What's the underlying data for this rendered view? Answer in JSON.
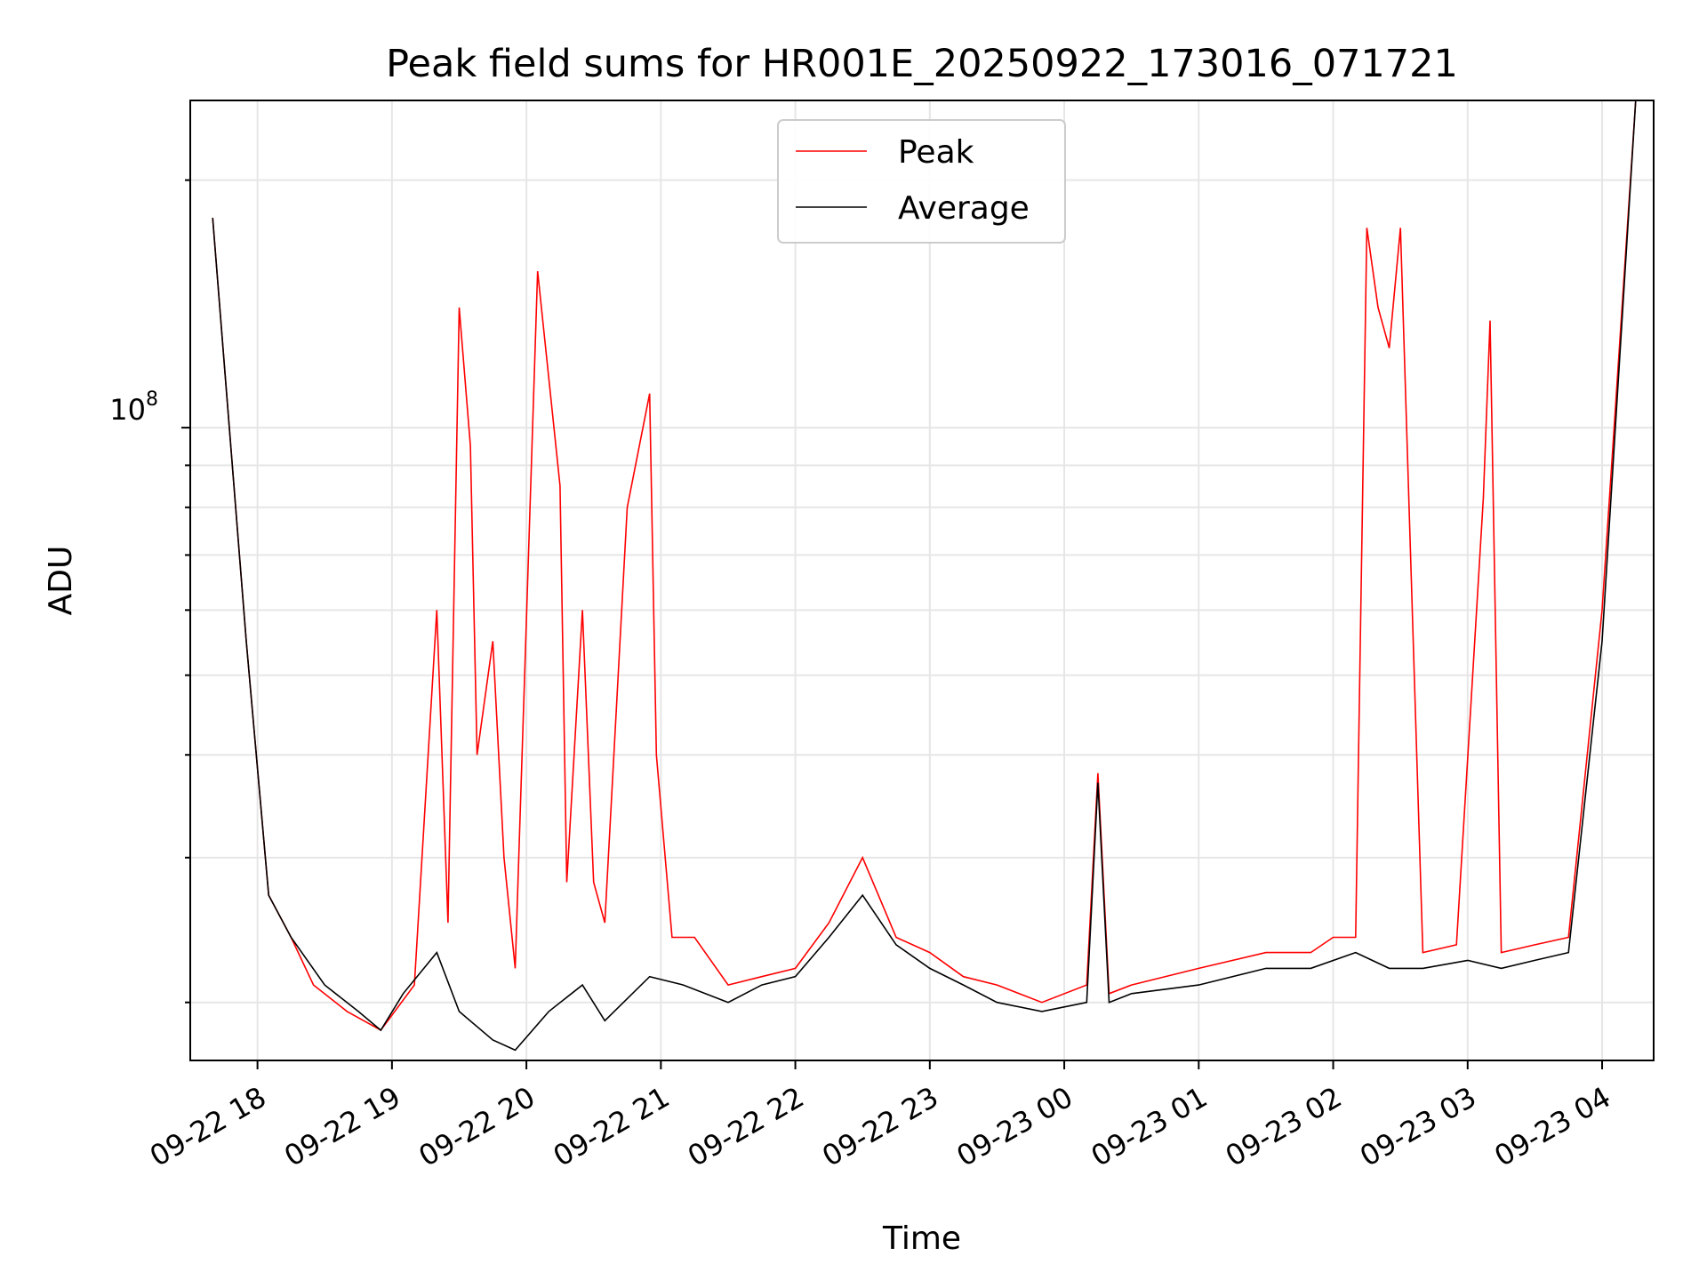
{
  "chart_data": {
    "type": "line",
    "title": "Peak field sums for HR001E_20250922_173016_071721",
    "xlabel": "Time",
    "ylabel": "ADU",
    "yscale": "log",
    "ylim": [
      17000000,
      250000000
    ],
    "y_tick_label": {
      "base": "10",
      "exponent": "8"
    },
    "xlim": [
      "2025-09-22 17:30",
      "2025-09-23 04:23"
    ],
    "x_tick_labels": [
      "09-22 18",
      "09-22 19",
      "09-22 20",
      "09-22 21",
      "09-22 22",
      "09-22 23",
      "09-23 00",
      "09-23 01",
      "09-23 02",
      "09-23 03",
      "09-23 04"
    ],
    "x_ticks": [
      "2025-09-22 18:00",
      "2025-09-22 19:00",
      "2025-09-22 20:00",
      "2025-09-22 21:00",
      "2025-09-22 22:00",
      "2025-09-22 23:00",
      "2025-09-23 00:00",
      "2025-09-23 01:00",
      "2025-09-23 02:00",
      "2025-09-23 03:00",
      "2025-09-23 04:00"
    ],
    "grid": true,
    "legend_position": "top-center",
    "series": [
      {
        "name": "Peak",
        "color": "#ff0000",
        "x": [
          "2025-09-22 17:40",
          "2025-09-22 17:55",
          "2025-09-22 18:05",
          "2025-09-22 18:15",
          "2025-09-22 18:25",
          "2025-09-22 18:40",
          "2025-09-22 18:55",
          "2025-09-22 19:10",
          "2025-09-22 19:20",
          "2025-09-22 19:25",
          "2025-09-22 19:30",
          "2025-09-22 19:35",
          "2025-09-22 19:38",
          "2025-09-22 19:45",
          "2025-09-22 19:50",
          "2025-09-22 19:55",
          "2025-09-22 20:05",
          "2025-09-22 20:15",
          "2025-09-22 20:18",
          "2025-09-22 20:25",
          "2025-09-22 20:30",
          "2025-09-22 20:35",
          "2025-09-22 20:45",
          "2025-09-22 20:55",
          "2025-09-22 20:58",
          "2025-09-22 21:05",
          "2025-09-22 21:15",
          "2025-09-22 21:30",
          "2025-09-22 21:45",
          "2025-09-22 22:00",
          "2025-09-22 22:15",
          "2025-09-22 22:30",
          "2025-09-22 22:45",
          "2025-09-22 23:00",
          "2025-09-22 23:15",
          "2025-09-22 23:30",
          "2025-09-22 23:50",
          "2025-09-23 00:10",
          "2025-09-23 00:15",
          "2025-09-23 00:20",
          "2025-09-23 00:30",
          "2025-09-23 01:00",
          "2025-09-23 01:30",
          "2025-09-23 01:50",
          "2025-09-23 02:00",
          "2025-09-23 02:10",
          "2025-09-23 02:15",
          "2025-09-23 02:20",
          "2025-09-23 02:25",
          "2025-09-23 02:30",
          "2025-09-23 02:40",
          "2025-09-23 02:55",
          "2025-09-23 03:07",
          "2025-09-23 03:10",
          "2025-09-23 03:15",
          "2025-09-23 03:30",
          "2025-09-23 03:45",
          "2025-09-23 04:00",
          "2025-09-23 04:15"
        ],
        "y": [
          180000000,
          55000000,
          27000000,
          24000000,
          21000000,
          19500000,
          18500000,
          21000000,
          60000000,
          25000000,
          140000000,
          95000000,
          40000000,
          55000000,
          30000000,
          22000000,
          155000000,
          85000000,
          28000000,
          60000000,
          28000000,
          25000000,
          80000000,
          110000000,
          40000000,
          24000000,
          24000000,
          21000000,
          21500000,
          22000000,
          25000000,
          30000000,
          24000000,
          23000000,
          21500000,
          21000000,
          20000000,
          21000000,
          38000000,
          20500000,
          21000000,
          22000000,
          23000000,
          23000000,
          24000000,
          24000000,
          175000000,
          140000000,
          125000000,
          175000000,
          23000000,
          23500000,
          82000000,
          135000000,
          23000000,
          23500000,
          24000000,
          60000000,
          250000000
        ]
      },
      {
        "name": "Average",
        "color": "#000000",
        "x": [
          "2025-09-22 17:40",
          "2025-09-22 17:55",
          "2025-09-22 18:05",
          "2025-09-22 18:15",
          "2025-09-22 18:30",
          "2025-09-22 18:45",
          "2025-09-22 18:55",
          "2025-09-22 19:05",
          "2025-09-22 19:20",
          "2025-09-22 19:30",
          "2025-09-22 19:45",
          "2025-09-22 19:55",
          "2025-09-22 20:10",
          "2025-09-22 20:25",
          "2025-09-22 20:35",
          "2025-09-22 20:55",
          "2025-09-22 21:10",
          "2025-09-22 21:30",
          "2025-09-22 21:45",
          "2025-09-22 22:00",
          "2025-09-22 22:15",
          "2025-09-22 22:30",
          "2025-09-22 22:45",
          "2025-09-22 23:00",
          "2025-09-22 23:15",
          "2025-09-22 23:30",
          "2025-09-22 23:50",
          "2025-09-23 00:10",
          "2025-09-23 00:15",
          "2025-09-23 00:20",
          "2025-09-23 00:30",
          "2025-09-23 01:00",
          "2025-09-23 01:30",
          "2025-09-23 01:50",
          "2025-09-23 02:10",
          "2025-09-23 02:25",
          "2025-09-23 02:40",
          "2025-09-23 03:00",
          "2025-09-23 03:15",
          "2025-09-23 03:30",
          "2025-09-23 03:45",
          "2025-09-23 04:00",
          "2025-09-23 04:15"
        ],
        "y": [
          180000000,
          55000000,
          27000000,
          24000000,
          21000000,
          19500000,
          18500000,
          20500000,
          23000000,
          19500000,
          18000000,
          17500000,
          19500000,
          21000000,
          19000000,
          21500000,
          21000000,
          20000000,
          21000000,
          21500000,
          24000000,
          27000000,
          23500000,
          22000000,
          21000000,
          20000000,
          19500000,
          20000000,
          37000000,
          20000000,
          20500000,
          21000000,
          22000000,
          22000000,
          23000000,
          22000000,
          22000000,
          22500000,
          22000000,
          22500000,
          23000000,
          55000000,
          250000000
        ]
      }
    ]
  }
}
